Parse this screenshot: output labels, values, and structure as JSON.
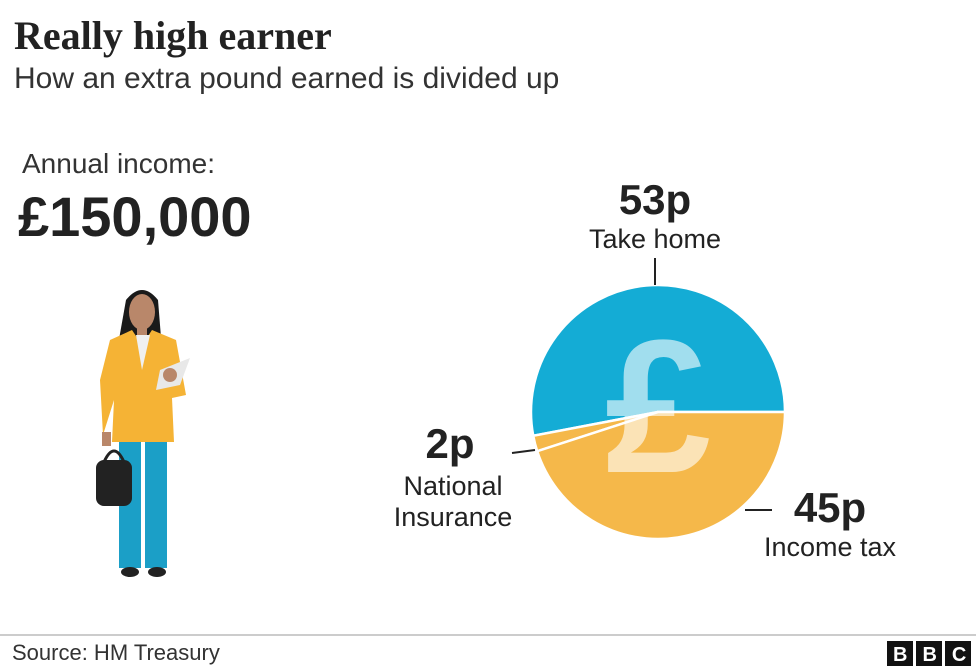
{
  "header": {
    "title": "Really high earner",
    "subtitle": "How an extra pound earned is divided up"
  },
  "income": {
    "label": "Annual income:",
    "value": "£150,000"
  },
  "chart_data": {
    "type": "pie",
    "categories": [
      "Take home",
      "National Insurance",
      "Income tax"
    ],
    "values": [
      53,
      2,
      45
    ],
    "value_labels": [
      "53p",
      "2p",
      "45p"
    ],
    "colors": [
      "#14acd5",
      "#f5b84a",
      "#f5b84a"
    ],
    "symbol": "£"
  },
  "footer": {
    "source": "Source: HM Treasury",
    "logo": "BBC"
  }
}
